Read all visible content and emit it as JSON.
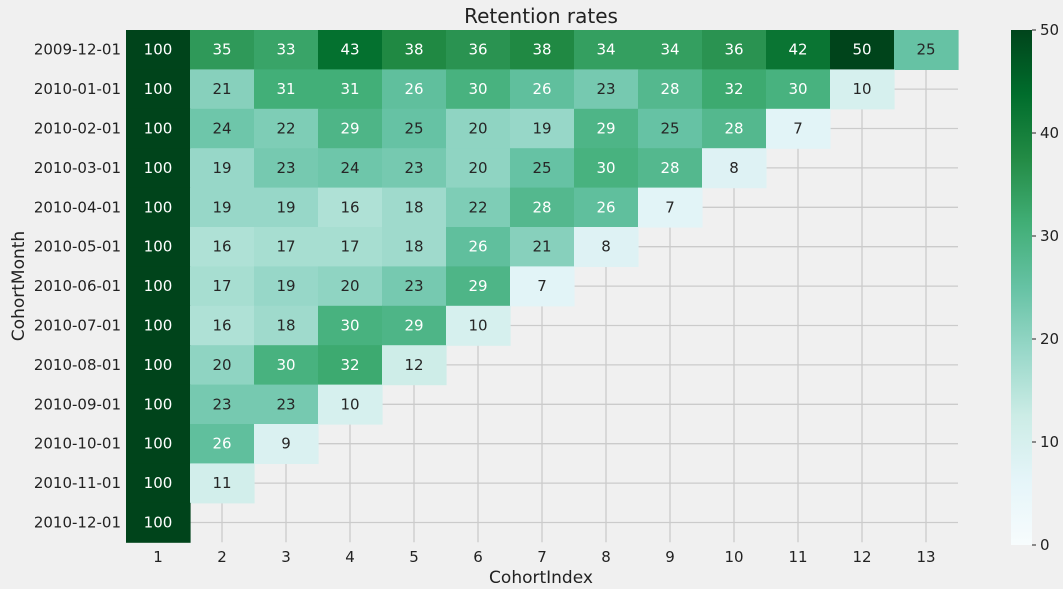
{
  "chart_data": {
    "type": "heatmap",
    "title": "Retention rates",
    "xlabel": "CohortIndex",
    "ylabel": "CohortMonth",
    "x": [
      "1",
      "2",
      "3",
      "4",
      "5",
      "6",
      "7",
      "8",
      "9",
      "10",
      "11",
      "12",
      "13"
    ],
    "y": [
      "2009-12-01",
      "2010-01-01",
      "2010-02-01",
      "2010-03-01",
      "2010-04-01",
      "2010-05-01",
      "2010-06-01",
      "2010-07-01",
      "2010-08-01",
      "2010-09-01",
      "2010-10-01",
      "2010-11-01",
      "2010-12-01"
    ],
    "values": [
      [
        100,
        35,
        33,
        43,
        38,
        36,
        38,
        34,
        34,
        36,
        42,
        50,
        25
      ],
      [
        100,
        21,
        31,
        31,
        26,
        30,
        26,
        23,
        28,
        32,
        30,
        10,
        null
      ],
      [
        100,
        24,
        22,
        29,
        25,
        20,
        19,
        29,
        25,
        28,
        7,
        null,
        null
      ],
      [
        100,
        19,
        23,
        24,
        23,
        20,
        25,
        30,
        28,
        8,
        null,
        null,
        null
      ],
      [
        100,
        19,
        19,
        16,
        18,
        22,
        28,
        26,
        7,
        null,
        null,
        null,
        null
      ],
      [
        100,
        16,
        17,
        17,
        18,
        26,
        21,
        8,
        null,
        null,
        null,
        null,
        null
      ],
      [
        100,
        17,
        19,
        20,
        23,
        29,
        7,
        null,
        null,
        null,
        null,
        null,
        null
      ],
      [
        100,
        16,
        18,
        30,
        29,
        10,
        null,
        null,
        null,
        null,
        null,
        null,
        null
      ],
      [
        100,
        20,
        30,
        32,
        12,
        null,
        null,
        null,
        null,
        null,
        null,
        null,
        null
      ],
      [
        100,
        23,
        23,
        10,
        null,
        null,
        null,
        null,
        null,
        null,
        null,
        null,
        null
      ],
      [
        100,
        26,
        9,
        null,
        null,
        null,
        null,
        null,
        null,
        null,
        null,
        null,
        null
      ],
      [
        100,
        11,
        null,
        null,
        null,
        null,
        null,
        null,
        null,
        null,
        null,
        null,
        null
      ],
      [
        100,
        null,
        null,
        null,
        null,
        null,
        null,
        null,
        null,
        null,
        null,
        null,
        null
      ]
    ],
    "colorbar": {
      "vmin": 0,
      "vmax": 50,
      "ticks": [
        0,
        10,
        20,
        30,
        40,
        50
      ]
    },
    "colormap": [
      "#f7fcfd",
      "#e5f5f9",
      "#ccece6",
      "#99d8c9",
      "#66c2a4",
      "#41ae76",
      "#238b45",
      "#006d2c",
      "#00441b"
    ],
    "grid": true
  }
}
